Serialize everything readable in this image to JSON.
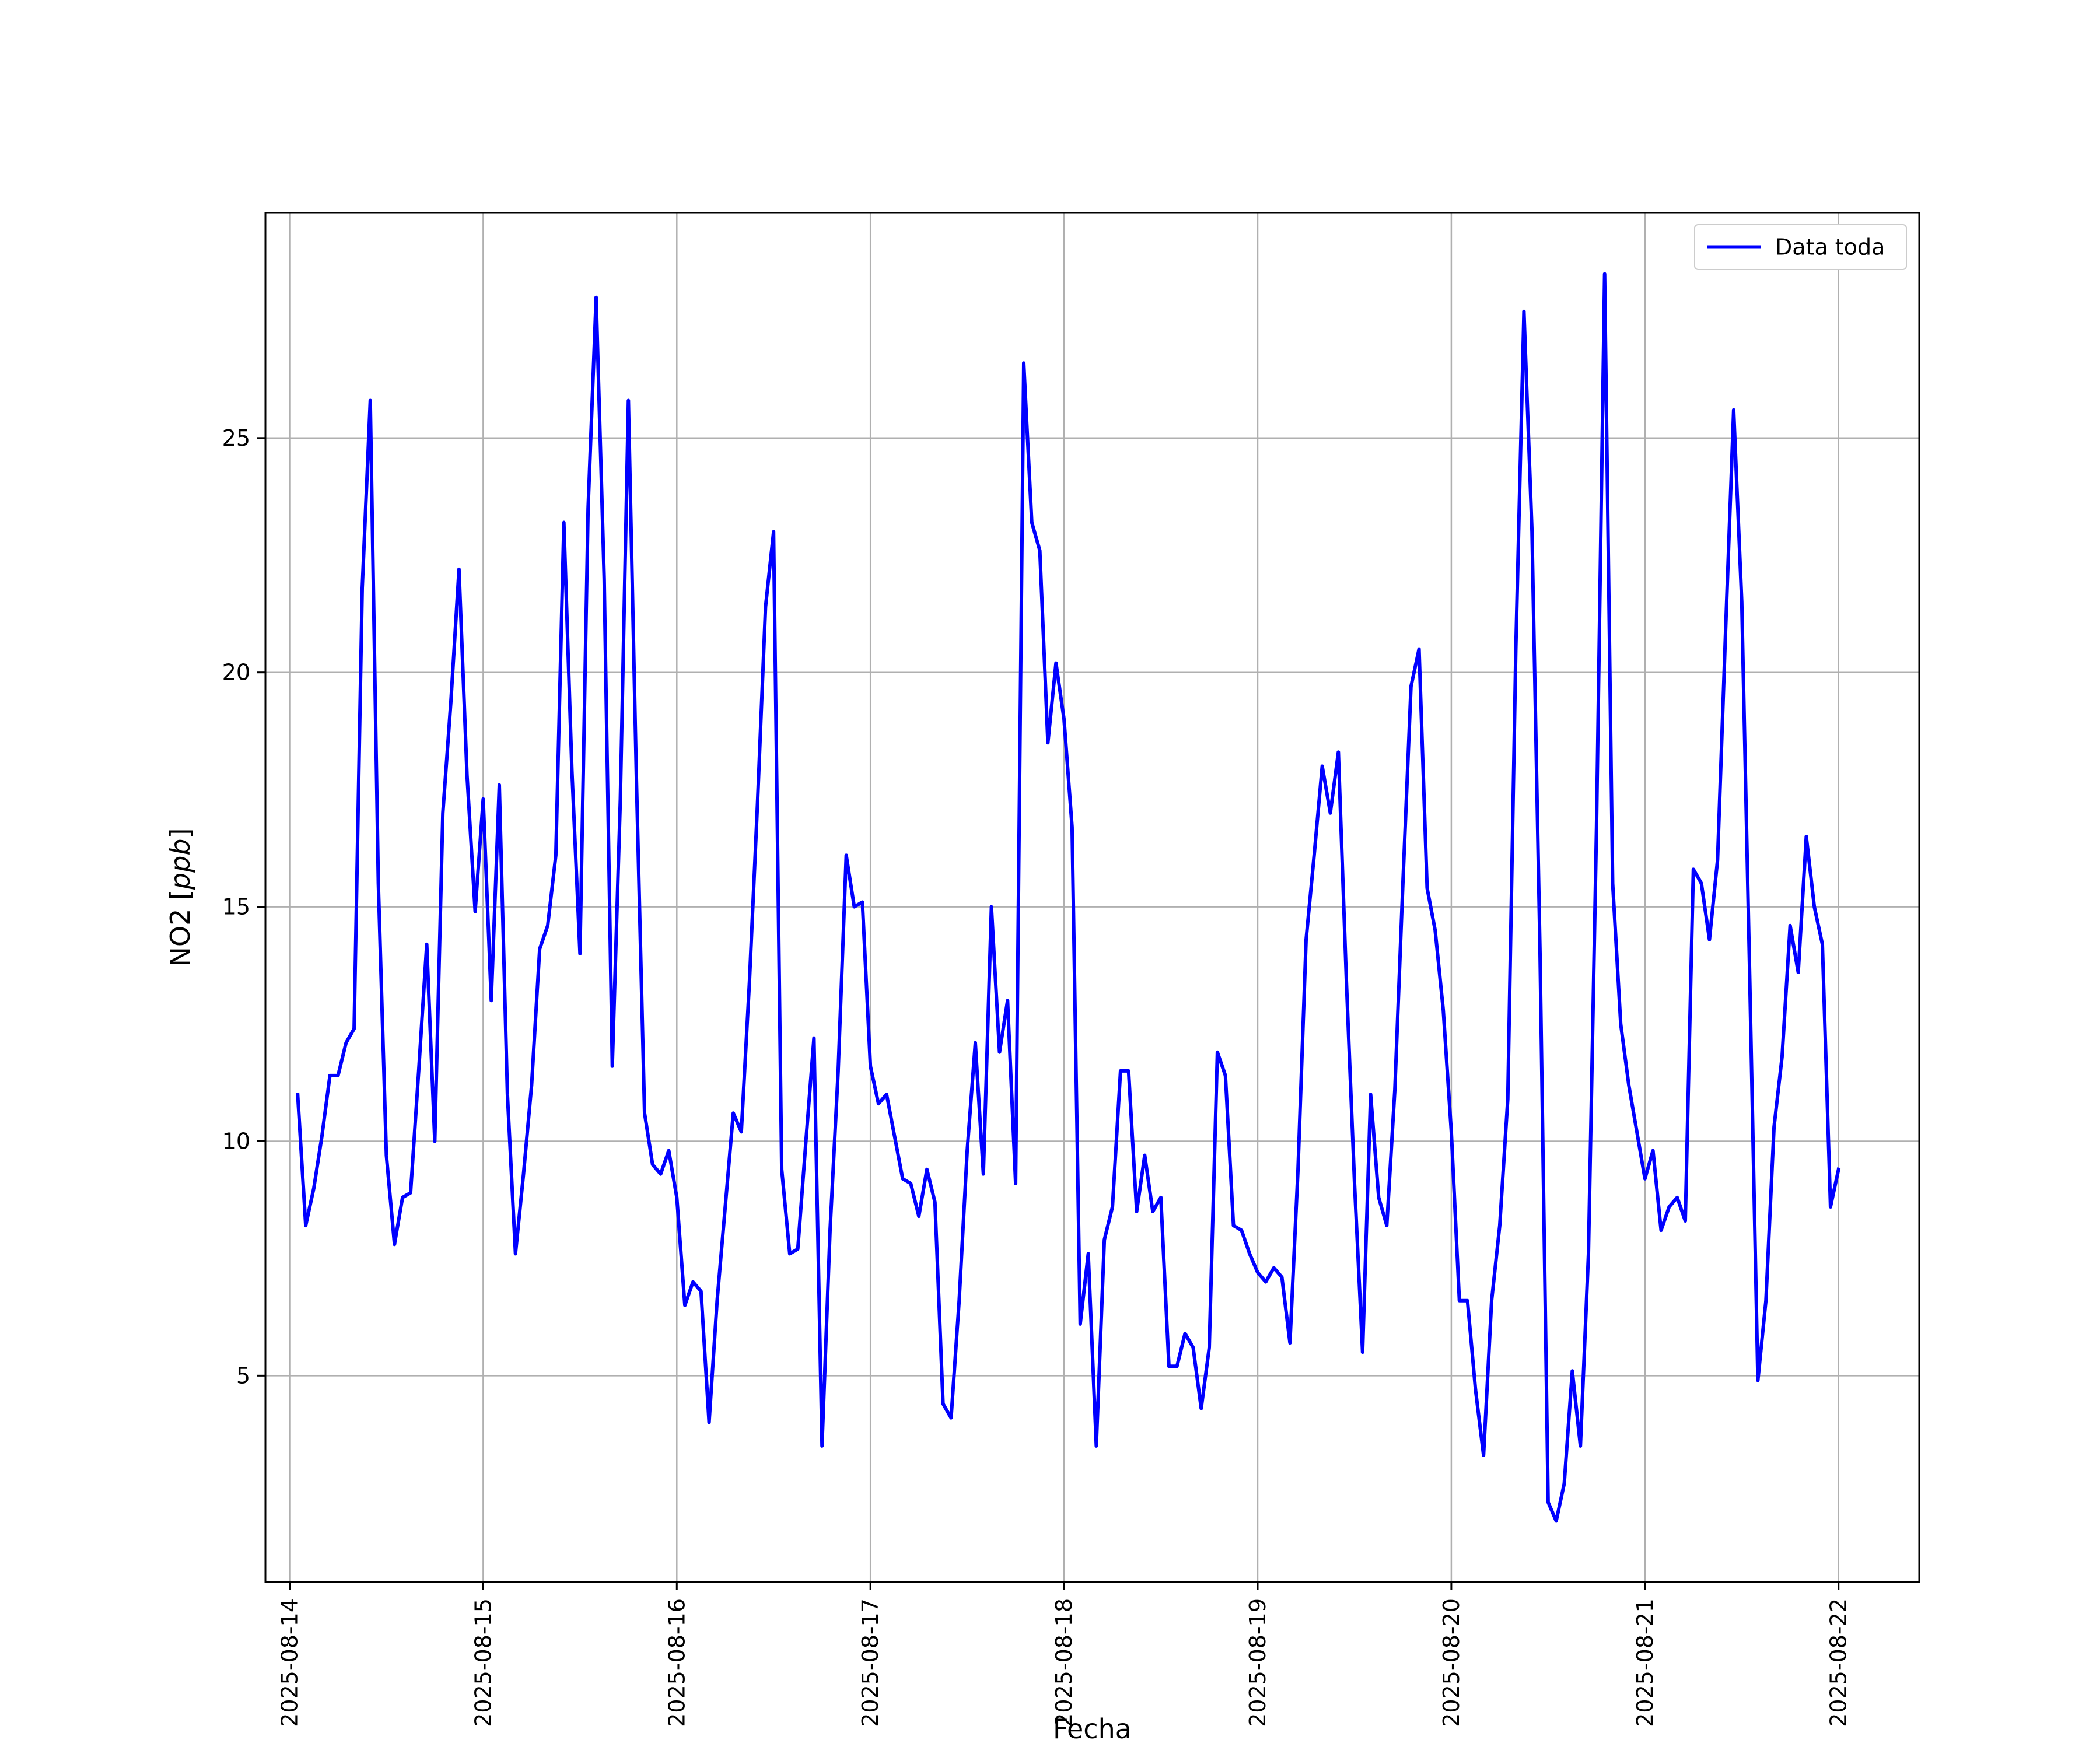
{
  "chart_data": {
    "type": "line",
    "xlabel": "Fecha",
    "ylabel": "NO2 [ppb]",
    "ylabel_main": "NO2 [",
    "ylabel_unit": "ppb",
    "ylabel_close": "]",
    "xlim": [
      "2025-08-13T21:00",
      "2025-08-22T10:00"
    ],
    "ylim": [
      0.6,
      29.8
    ],
    "yticks": [
      5,
      10,
      15,
      20,
      25
    ],
    "xticks": [
      "2025-08-14",
      "2025-08-15",
      "2025-08-16",
      "2025-08-17",
      "2025-08-18",
      "2025-08-19",
      "2025-08-20",
      "2025-08-21",
      "2025-08-22"
    ],
    "grid": true,
    "legend": "top-right",
    "series": [
      {
        "name": "Data toda",
        "color": "#0000ff",
        "x": [
          "2025-08-14T01:00",
          "2025-08-14T02:00",
          "2025-08-14T03:00",
          "2025-08-14T04:00",
          "2025-08-14T05:00",
          "2025-08-14T06:00",
          "2025-08-14T07:00",
          "2025-08-14T08:00",
          "2025-08-14T09:00",
          "2025-08-14T10:00",
          "2025-08-14T11:00",
          "2025-08-14T12:00",
          "2025-08-14T13:00",
          "2025-08-14T14:00",
          "2025-08-14T15:00",
          "2025-08-14T16:00",
          "2025-08-14T17:00",
          "2025-08-14T18:00",
          "2025-08-14T19:00",
          "2025-08-14T20:00",
          "2025-08-14T21:00",
          "2025-08-14T22:00",
          "2025-08-14T23:00",
          "2025-08-15T00:00",
          "2025-08-15T01:00",
          "2025-08-15T02:00",
          "2025-08-15T03:00",
          "2025-08-15T04:00",
          "2025-08-15T05:00",
          "2025-08-15T06:00",
          "2025-08-15T07:00",
          "2025-08-15T08:00",
          "2025-08-15T09:00",
          "2025-08-15T10:00",
          "2025-08-15T11:00",
          "2025-08-15T12:00",
          "2025-08-15T13:00",
          "2025-08-15T14:00",
          "2025-08-15T15:00",
          "2025-08-15T16:00",
          "2025-08-15T17:00",
          "2025-08-15T18:00",
          "2025-08-15T19:00",
          "2025-08-15T20:00",
          "2025-08-15T21:00",
          "2025-08-15T22:00",
          "2025-08-15T23:00",
          "2025-08-16T00:00",
          "2025-08-16T01:00",
          "2025-08-16T02:00",
          "2025-08-16T03:00",
          "2025-08-16T04:00",
          "2025-08-16T05:00",
          "2025-08-16T06:00",
          "2025-08-16T07:00",
          "2025-08-16T08:00",
          "2025-08-16T09:00",
          "2025-08-16T10:00",
          "2025-08-16T11:00",
          "2025-08-16T12:00",
          "2025-08-16T13:00",
          "2025-08-16T14:00",
          "2025-08-16T15:00",
          "2025-08-16T16:00",
          "2025-08-16T17:00",
          "2025-08-16T18:00",
          "2025-08-16T19:00",
          "2025-08-16T20:00",
          "2025-08-16T21:00",
          "2025-08-16T22:00",
          "2025-08-16T23:00",
          "2025-08-17T00:00",
          "2025-08-17T01:00",
          "2025-08-17T02:00",
          "2025-08-17T03:00",
          "2025-08-17T04:00",
          "2025-08-17T05:00",
          "2025-08-17T06:00",
          "2025-08-17T07:00",
          "2025-08-17T08:00",
          "2025-08-17T09:00",
          "2025-08-17T10:00",
          "2025-08-17T11:00",
          "2025-08-17T12:00",
          "2025-08-17T13:00",
          "2025-08-17T14:00",
          "2025-08-17T15:00",
          "2025-08-17T16:00",
          "2025-08-17T17:00",
          "2025-08-17T18:00",
          "2025-08-17T19:00",
          "2025-08-17T20:00",
          "2025-08-17T21:00",
          "2025-08-17T22:00",
          "2025-08-17T23:00",
          "2025-08-18T00:00",
          "2025-08-18T01:00",
          "2025-08-18T02:00",
          "2025-08-18T03:00",
          "2025-08-18T04:00",
          "2025-08-18T05:00",
          "2025-08-18T06:00",
          "2025-08-18T07:00",
          "2025-08-18T08:00",
          "2025-08-18T09:00",
          "2025-08-18T10:00",
          "2025-08-18T11:00",
          "2025-08-18T12:00",
          "2025-08-18T13:00",
          "2025-08-18T14:00",
          "2025-08-18T15:00",
          "2025-08-18T16:00",
          "2025-08-18T17:00",
          "2025-08-18T18:00",
          "2025-08-18T19:00",
          "2025-08-18T20:00",
          "2025-08-18T21:00",
          "2025-08-18T22:00",
          "2025-08-18T23:00",
          "2025-08-19T00:00",
          "2025-08-19T01:00",
          "2025-08-19T02:00",
          "2025-08-19T03:00",
          "2025-08-19T04:00",
          "2025-08-19T05:00",
          "2025-08-19T06:00",
          "2025-08-19T07:00",
          "2025-08-19T08:00",
          "2025-08-19T09:00",
          "2025-08-19T10:00",
          "2025-08-19T11:00",
          "2025-08-19T12:00",
          "2025-08-19T13:00",
          "2025-08-19T14:00",
          "2025-08-19T15:00",
          "2025-08-19T16:00",
          "2025-08-19T17:00",
          "2025-08-19T18:00",
          "2025-08-19T19:00",
          "2025-08-19T20:00",
          "2025-08-19T21:00",
          "2025-08-19T22:00",
          "2025-08-19T23:00",
          "2025-08-20T00:00",
          "2025-08-20T01:00",
          "2025-08-20T02:00",
          "2025-08-20T03:00",
          "2025-08-20T04:00",
          "2025-08-20T05:00",
          "2025-08-20T06:00",
          "2025-08-20T07:00",
          "2025-08-20T08:00",
          "2025-08-20T09:00",
          "2025-08-20T10:00",
          "2025-08-20T11:00",
          "2025-08-20T12:00",
          "2025-08-20T13:00",
          "2025-08-20T14:00",
          "2025-08-20T15:00",
          "2025-08-20T16:00",
          "2025-08-20T17:00",
          "2025-08-20T18:00",
          "2025-08-20T19:00",
          "2025-08-20T20:00",
          "2025-08-20T21:00",
          "2025-08-20T22:00",
          "2025-08-20T23:00",
          "2025-08-21T00:00",
          "2025-08-21T01:00",
          "2025-08-21T02:00",
          "2025-08-21T03:00",
          "2025-08-21T04:00",
          "2025-08-21T05:00",
          "2025-08-21T06:00",
          "2025-08-21T07:00",
          "2025-08-21T08:00",
          "2025-08-21T09:00",
          "2025-08-21T10:00",
          "2025-08-21T11:00",
          "2025-08-21T12:00",
          "2025-08-21T13:00",
          "2025-08-21T14:00",
          "2025-08-21T15:00",
          "2025-08-21T16:00",
          "2025-08-21T17:00",
          "2025-08-21T18:00",
          "2025-08-21T19:00",
          "2025-08-21T20:00",
          "2025-08-21T21:00",
          "2025-08-21T22:00",
          "2025-08-21T23:00",
          "2025-08-22T00:00"
        ],
        "y": [
          11.0,
          8.2,
          9.0,
          10.1,
          11.4,
          11.4,
          12.1,
          12.4,
          21.8,
          25.8,
          15.5,
          9.7,
          7.8,
          8.8,
          8.9,
          11.5,
          14.2,
          10.0,
          17.0,
          19.4,
          22.2,
          17.8,
          14.9,
          17.3,
          13.0,
          17.6,
          11.0,
          7.6,
          9.3,
          11.2,
          14.1,
          14.6,
          16.1,
          23.2,
          17.9,
          14.0,
          23.5,
          28.0,
          22.0,
          11.6,
          17.3,
          25.8,
          17.7,
          10.6,
          9.5,
          9.3,
          9.8,
          8.8,
          6.5,
          7.0,
          6.8,
          4.0,
          6.6,
          8.6,
          10.6,
          10.2,
          13.4,
          17.2,
          21.4,
          23.0,
          9.4,
          7.6,
          7.7,
          10.0,
          12.2,
          3.5,
          8.1,
          11.5,
          16.1,
          15.0,
          15.1,
          11.6,
          10.8,
          11.0,
          10.1,
          9.2,
          9.1,
          8.4,
          9.4,
          8.7,
          4.4,
          4.1,
          6.6,
          9.8,
          12.1,
          9.3,
          15.0,
          11.9,
          13.0,
          9.1,
          26.6,
          23.2,
          22.6,
          18.5,
          20.2,
          19.0,
          16.7,
          6.1,
          7.6,
          3.5,
          7.9,
          8.6,
          11.5,
          11.5,
          8.5,
          9.7,
          8.5,
          8.8,
          5.2,
          5.2,
          5.9,
          5.6,
          4.3,
          5.6,
          11.9,
          11.4,
          8.2,
          8.1,
          7.6,
          7.2,
          7.0,
          7.3,
          7.1,
          5.7,
          9.4,
          14.3,
          16.1,
          18.0,
          17.0,
          18.3,
          13.4,
          9.1,
          5.5,
          11.0,
          8.8,
          8.2,
          11.1,
          15.5,
          19.7,
          20.5,
          15.4,
          14.5,
          12.8,
          10.2,
          6.6,
          6.6,
          4.7,
          3.3,
          6.6,
          8.2,
          10.9,
          20.5,
          27.7,
          23.0,
          14.0,
          2.3,
          1.9,
          2.7,
          5.1,
          3.5,
          7.6,
          16.7,
          28.5,
          15.5,
          12.5,
          11.2,
          10.2,
          9.2,
          9.8,
          8.1,
          8.6,
          8.8,
          8.3,
          15.8,
          15.5,
          14.3,
          16.0,
          20.9,
          25.6,
          21.5,
          13.4,
          4.9,
          6.6,
          10.3,
          11.8,
          14.6,
          13.6,
          16.5,
          15.0,
          14.2,
          8.6,
          9.4
        ]
      }
    ]
  }
}
